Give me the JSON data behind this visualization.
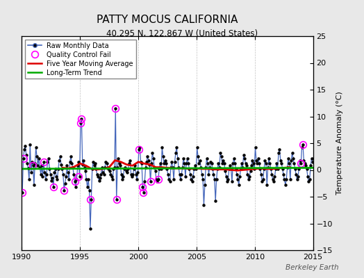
{
  "title": "PATTY MOCUS CALIFORNIA",
  "subtitle": "40.295 N, 122.867 W (United States)",
  "ylabel": "Temperature Anomaly (°C)",
  "watermark": "Berkeley Earth",
  "xlim": [
    1990,
    2015
  ],
  "ylim": [
    -15,
    25
  ],
  "yticks": [
    -15,
    -10,
    -5,
    0,
    5,
    10,
    15,
    20,
    25
  ],
  "xticks": [
    1990,
    1995,
    2000,
    2005,
    2010,
    2015
  ],
  "fig_bg_color": "#e8e8e8",
  "plot_bg_color": "#ffffff",
  "raw_color": "#4466bb",
  "dot_color": "#000000",
  "ma_color": "#dd0000",
  "trend_color": "#00aa00",
  "qc_color": "#ff00ff",
  "raw_data_x": [
    1990.042,
    1990.125,
    1990.208,
    1990.292,
    1990.375,
    1990.458,
    1990.542,
    1990.625,
    1990.708,
    1990.792,
    1990.875,
    1990.958,
    1991.042,
    1991.125,
    1991.208,
    1991.292,
    1991.375,
    1991.458,
    1991.542,
    1991.625,
    1991.708,
    1991.792,
    1991.875,
    1991.958,
    1992.042,
    1992.125,
    1992.208,
    1992.292,
    1992.375,
    1992.458,
    1992.542,
    1992.625,
    1992.708,
    1992.792,
    1992.875,
    1992.958,
    1993.042,
    1993.125,
    1993.208,
    1993.292,
    1993.375,
    1993.458,
    1993.542,
    1993.625,
    1993.708,
    1993.792,
    1993.875,
    1993.958,
    1994.042,
    1994.125,
    1994.208,
    1994.292,
    1994.375,
    1994.458,
    1994.542,
    1994.625,
    1994.708,
    1994.792,
    1994.875,
    1994.958,
    1995.042,
    1995.125,
    1995.208,
    1995.292,
    1995.375,
    1995.458,
    1995.542,
    1995.625,
    1995.708,
    1995.792,
    1995.875,
    1995.958,
    1996.042,
    1996.125,
    1996.208,
    1996.292,
    1996.375,
    1996.458,
    1996.542,
    1996.625,
    1996.708,
    1996.792,
    1996.875,
    1996.958,
    1997.042,
    1997.125,
    1997.208,
    1997.292,
    1997.375,
    1997.458,
    1997.542,
    1997.625,
    1997.708,
    1997.792,
    1997.875,
    1997.958,
    1998.042,
    1998.125,
    1998.208,
    1998.292,
    1998.375,
    1998.458,
    1998.542,
    1998.625,
    1998.708,
    1998.792,
    1998.875,
    1998.958,
    1999.042,
    1999.125,
    1999.208,
    1999.292,
    1999.375,
    1999.458,
    1999.542,
    1999.625,
    1999.708,
    1999.792,
    1999.875,
    1999.958,
    2000.042,
    2000.125,
    2000.208,
    2000.292,
    2000.375,
    2000.458,
    2000.542,
    2000.625,
    2000.708,
    2000.792,
    2000.875,
    2000.958,
    2001.042,
    2001.125,
    2001.208,
    2001.292,
    2001.375,
    2001.458,
    2001.542,
    2001.625,
    2001.708,
    2001.792,
    2001.875,
    2001.958,
    2002.042,
    2002.125,
    2002.208,
    2002.292,
    2002.375,
    2002.458,
    2002.542,
    2002.625,
    2002.708,
    2002.792,
    2002.875,
    2002.958,
    2003.042,
    2003.125,
    2003.208,
    2003.292,
    2003.375,
    2003.458,
    2003.542,
    2003.625,
    2003.708,
    2003.792,
    2003.875,
    2003.958,
    2004.042,
    2004.125,
    2004.208,
    2004.292,
    2004.375,
    2004.458,
    2004.542,
    2004.625,
    2004.708,
    2004.792,
    2004.875,
    2004.958,
    2005.042,
    2005.125,
    2005.208,
    2005.292,
    2005.375,
    2005.458,
    2005.542,
    2005.625,
    2005.708,
    2005.792,
    2005.875,
    2005.958,
    2006.042,
    2006.125,
    2006.208,
    2006.292,
    2006.375,
    2006.458,
    2006.542,
    2006.625,
    2006.708,
    2006.792,
    2006.875,
    2006.958,
    2007.042,
    2007.125,
    2007.208,
    2007.292,
    2007.375,
    2007.458,
    2007.542,
    2007.625,
    2007.708,
    2007.792,
    2007.875,
    2007.958,
    2008.042,
    2008.125,
    2008.208,
    2008.292,
    2008.375,
    2008.458,
    2008.542,
    2008.625,
    2008.708,
    2008.792,
    2008.875,
    2008.958,
    2009.042,
    2009.125,
    2009.208,
    2009.292,
    2009.375,
    2009.458,
    2009.542,
    2009.625,
    2009.708,
    2009.792,
    2009.875,
    2009.958,
    2010.042,
    2010.125,
    2010.208,
    2010.292,
    2010.375,
    2010.458,
    2010.542,
    2010.625,
    2010.708,
    2010.792,
    2010.875,
    2010.958,
    2011.042,
    2011.125,
    2011.208,
    2011.292,
    2011.375,
    2011.458,
    2011.542,
    2011.625,
    2011.708,
    2011.792,
    2011.875,
    2011.958,
    2012.042,
    2012.125,
    2012.208,
    2012.292,
    2012.375,
    2012.458,
    2012.542,
    2012.625,
    2012.708,
    2012.792,
    2012.875,
    2012.958,
    2013.042,
    2013.125,
    2013.208,
    2013.292,
    2013.375,
    2013.458,
    2013.542,
    2013.625,
    2013.708,
    2013.792,
    2013.875,
    2013.958,
    2014.042,
    2014.125,
    2014.208,
    2014.292,
    2014.375,
    2014.458,
    2014.542,
    2014.625,
    2014.708,
    2014.792,
    2014.875,
    2014.958
  ],
  "raw_data_y": [
    -4.2,
    2.1,
    3.8,
    4.5,
    2.8,
    1.2,
    0.3,
    -1.8,
    4.8,
    -0.5,
    1.5,
    0.8,
    -2.8,
    1.2,
    4.2,
    2.5,
    0.8,
    2.2,
    0.5,
    -0.8,
    0.8,
    -1.2,
    1.5,
    -0.5,
    -1.8,
    -0.8,
    1.5,
    2.2,
    0.2,
    -0.8,
    -2.0,
    -1.5,
    -3.2,
    -0.5,
    0.2,
    -1.2,
    -1.8,
    0.2,
    1.8,
    2.5,
    1.0,
    0.2,
    -0.8,
    -3.8,
    -2.5,
    -1.2,
    0.8,
    -0.5,
    -1.8,
    1.5,
    2.5,
    1.2,
    0.5,
    -0.8,
    -2.2,
    -3.2,
    -1.8,
    0.8,
    1.5,
    -1.2,
    8.8,
    9.5,
    1.0,
    1.8,
    0.5,
    -0.2,
    -1.8,
    -3.2,
    -1.8,
    -3.8,
    -11.0,
    -5.5,
    0.2,
    1.5,
    0.8,
    1.2,
    0.2,
    -0.8,
    -1.2,
    -2.0,
    -1.5,
    -0.8,
    0.5,
    -0.5,
    -0.8,
    0.5,
    1.5,
    1.2,
    0.5,
    0.2,
    -0.2,
    -0.8,
    -1.2,
    -1.8,
    0.2,
    0.5,
    11.5,
    -5.5,
    0.5,
    2.2,
    1.2,
    0.8,
    -0.8,
    -1.8,
    -1.2,
    0.2,
    0.5,
    -0.2,
    -0.5,
    0.2,
    1.2,
    1.8,
    -0.8,
    -1.2,
    -0.8,
    0.2,
    0.8,
    -0.8,
    -1.8,
    -0.5,
    3.8,
    4.2,
    1.5,
    1.2,
    -3.2,
    -4.2,
    -2.2,
    0.5,
    1.5,
    2.5,
    1.8,
    1.0,
    -2.2,
    1.2,
    3.2,
    2.2,
    0.5,
    -0.2,
    -1.8,
    -2.2,
    -1.8,
    0.2,
    1.2,
    0.2,
    4.2,
    2.5,
    1.2,
    1.8,
    1.2,
    0.2,
    -0.8,
    -1.8,
    -2.2,
    0.5,
    1.5,
    0.5,
    -1.8,
    1.5,
    3.2,
    4.2,
    2.2,
    0.5,
    -0.8,
    -1.8,
    -0.8,
    0.5,
    2.2,
    1.2,
    -1.2,
    1.2,
    2.2,
    1.2,
    0.2,
    -0.8,
    -1.8,
    -2.2,
    -1.2,
    0.2,
    0.8,
    0.2,
    4.2,
    2.5,
    1.2,
    1.8,
    0.5,
    -0.8,
    -1.8,
    -6.5,
    -2.8,
    0.5,
    2.2,
    1.2,
    -0.8,
    0.5,
    1.5,
    1.2,
    0.2,
    -0.8,
    -1.8,
    -5.8,
    -1.8,
    0.2,
    1.2,
    0.5,
    3.2,
    2.5,
    1.2,
    1.8,
    1.2,
    -0.2,
    -1.2,
    -2.2,
    -1.8,
    0.2,
    0.8,
    0.2,
    -2.2,
    1.2,
    2.2,
    1.2,
    0.2,
    -0.8,
    -1.8,
    -2.8,
    -1.2,
    0.2,
    1.2,
    0.5,
    2.8,
    2.2,
    1.2,
    0.8,
    -0.8,
    -1.8,
    -1.2,
    -0.2,
    0.8,
    1.8,
    1.2,
    0.2,
    4.2,
    1.8,
    1.2,
    2.2,
    1.2,
    0.2,
    -0.8,
    -2.2,
    -1.8,
    0.2,
    1.8,
    1.2,
    -2.8,
    0.5,
    2.2,
    1.2,
    0.2,
    -0.8,
    -1.8,
    -2.2,
    -1.2,
    0.2,
    1.2,
    0.2,
    3.2,
    3.8,
    1.8,
    1.2,
    0.2,
    -0.8,
    -1.8,
    -2.8,
    -1.8,
    0.5,
    2.2,
    1.2,
    -1.8,
    1.8,
    3.2,
    2.2,
    1.2,
    0.2,
    -0.8,
    -1.8,
    -1.2,
    0.2,
    1.8,
    1.2,
    4.2,
    4.8,
    1.8,
    1.2,
    0.8,
    0.2,
    -1.2,
    -2.2,
    -1.8,
    0.8,
    2.2,
    1.5
  ],
  "qc_fail_x": [
    1990.042,
    1990.125,
    1990.917,
    1991.875,
    1992.708,
    1993.625,
    1994.542,
    1994.875,
    1995.042,
    1995.125,
    1995.875,
    1998.042,
    1998.125,
    2000.042,
    2000.333,
    2000.417,
    2001.042,
    2001.708,
    2013.958,
    2014.125
  ],
  "qc_fail_y": [
    -4.2,
    2.1,
    0.8,
    1.5,
    -3.2,
    -3.8,
    -2.2,
    -1.2,
    8.8,
    9.5,
    -5.5,
    11.5,
    -5.5,
    3.8,
    -3.2,
    -4.2,
    -2.2,
    -1.8,
    1.2,
    4.8
  ],
  "moving_avg_x": [
    1993.5,
    1994.0,
    1994.5,
    1995.0,
    1995.5,
    1996.0,
    1996.5,
    1997.0,
    1997.5,
    1998.0,
    1998.5,
    1999.0,
    1999.5,
    2000.0,
    2000.5,
    2001.0,
    2001.5,
    2002.0,
    2002.5,
    2003.0,
    2003.5,
    2004.0,
    2004.5,
    2005.0,
    2005.5,
    2006.0,
    2006.5,
    2007.0,
    2007.5,
    2008.0,
    2008.5,
    2009.0,
    2009.5,
    2010.0,
    2010.5,
    2011.0,
    2011.5,
    2012.0,
    2012.5,
    2013.0
  ],
  "moving_avg_y": [
    0.4,
    0.3,
    0.6,
    1.2,
    0.8,
    0.2,
    0.1,
    0.2,
    0.5,
    1.8,
    1.5,
    1.0,
    0.8,
    1.5,
    1.2,
    1.0,
    0.5,
    0.5,
    0.4,
    0.3,
    0.3,
    0.3,
    0.2,
    0.3,
    0.2,
    0.2,
    0.1,
    0.1,
    0.1,
    0.0,
    -0.1,
    0.0,
    0.1,
    0.2,
    0.3,
    0.2,
    0.2,
    0.3,
    0.4,
    0.5
  ],
  "trend_x": [
    1990,
    2015
  ],
  "trend_y": [
    0.2,
    0.4
  ]
}
